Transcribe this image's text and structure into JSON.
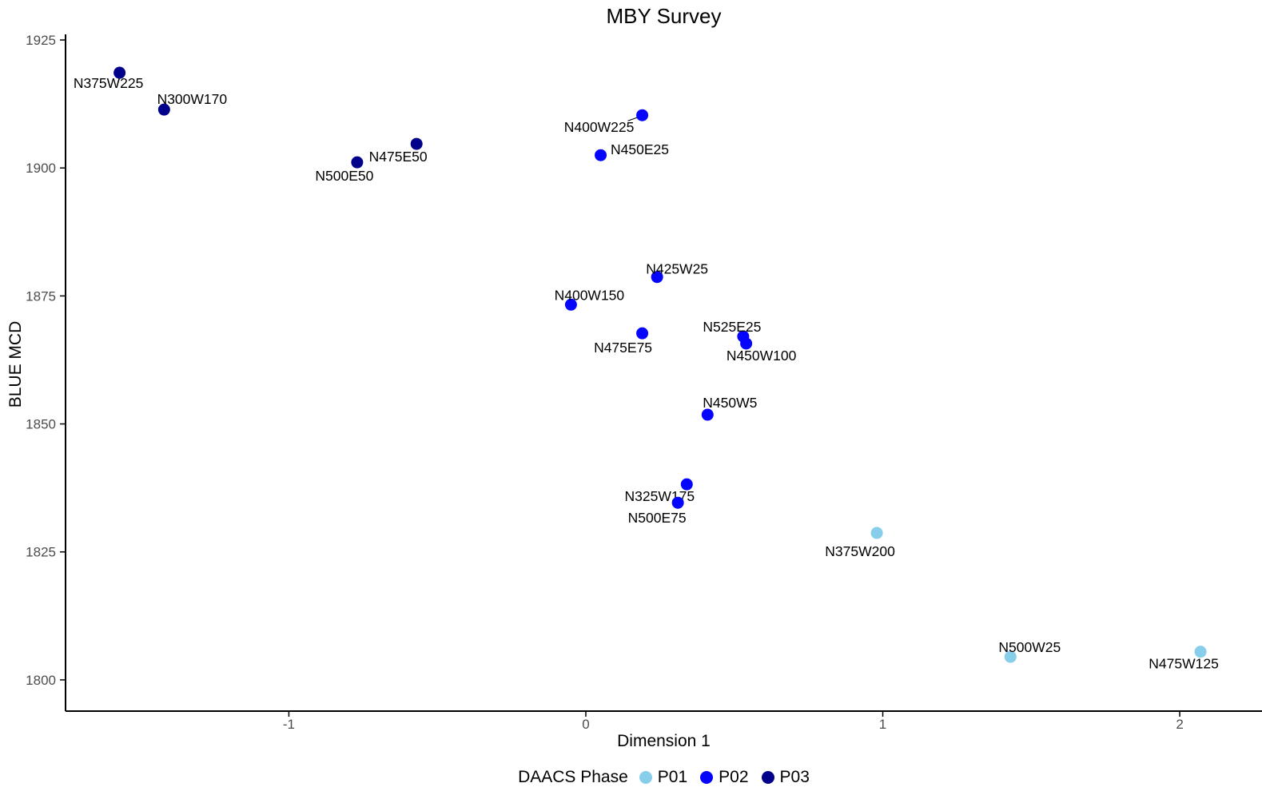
{
  "chart_data": {
    "type": "scatter",
    "title": "MBY Survey",
    "xlabel": "Dimension 1",
    "ylabel": "BLUE MCD",
    "legend_title": "DAACS Phase",
    "legend_position": "bottom",
    "grid": false,
    "xlim": [
      -1.752,
      2.277
    ],
    "ylim": [
      1793.9,
      1926.1
    ],
    "x_ticks": [
      -1,
      0,
      1,
      2
    ],
    "y_ticks": [
      1800,
      1825,
      1850,
      1875,
      1900,
      1925
    ],
    "colors": {
      "axis_line": "#000000",
      "axis_text": "#4D4D4D",
      "label_text": "#000000",
      "p01": "#87CEEB",
      "p02": "#0505FF",
      "p03": "#00008B"
    },
    "series": [
      {
        "name": "P01",
        "color": "#87CEEB",
        "points": [
          {
            "label": "N375W200",
            "x": 0.98,
            "y": 1828.7,
            "label_dx": -21,
            "label_dy": 23
          },
          {
            "label": "N500W25",
            "x": 1.43,
            "y": 1804.5,
            "label_dx": 24,
            "label_dy": -12
          },
          {
            "label": "N475W125",
            "x": 2.07,
            "y": 1805.5,
            "label_dx": -21,
            "label_dy": 15
          }
        ]
      },
      {
        "name": "P02",
        "color": "#0505FF",
        "points": [
          {
            "label": "N400W225",
            "x": 0.19,
            "y": 1910.3,
            "label_dx": -54,
            "label_dy": 15,
            "leader": true
          },
          {
            "label": "N450E25",
            "x": 0.05,
            "y": 1902.5,
            "label_dx": 49,
            "label_dy": -7
          },
          {
            "label": "N425W25",
            "x": 0.24,
            "y": 1878.7,
            "label_dx": 25,
            "label_dy": -10
          },
          {
            "label": "N400W150",
            "x": -0.05,
            "y": 1873.3,
            "label_dx": 23,
            "label_dy": -12
          },
          {
            "label": "N475E75",
            "x": 0.19,
            "y": 1867.7,
            "label_dx": -24,
            "label_dy": 18
          },
          {
            "label": "N525E25",
            "x": 0.53,
            "y": 1867.1,
            "label_dx": -14,
            "label_dy": -12
          },
          {
            "label": "N450W100",
            "x": 0.54,
            "y": 1865.7,
            "label_dx": 19,
            "label_dy": 15
          },
          {
            "label": "N450W5",
            "x": 0.41,
            "y": 1851.8,
            "label_dx": 28,
            "label_dy": -15
          },
          {
            "label": "N325W175",
            "x": 0.34,
            "y": 1838.2,
            "label_dx": -34,
            "label_dy": 15
          },
          {
            "label": "N500E75",
            "x": 0.31,
            "y": 1834.6,
            "label_dx": -26,
            "label_dy": 19
          }
        ]
      },
      {
        "name": "P03",
        "color": "#00008B",
        "points": [
          {
            "label": "N375W225",
            "x": -1.57,
            "y": 1918.6,
            "label_dx": -14,
            "label_dy": 13
          },
          {
            "label": "N300W170",
            "x": -1.42,
            "y": 1911.4,
            "label_dx": 35,
            "label_dy": -13
          },
          {
            "label": "N500E50",
            "x": -0.77,
            "y": 1901.1,
            "label_dx": -16,
            "label_dy": 17
          },
          {
            "label": "N475E50",
            "x": -0.57,
            "y": 1904.7,
            "label_dx": -23,
            "label_dy": 16
          }
        ]
      }
    ]
  }
}
